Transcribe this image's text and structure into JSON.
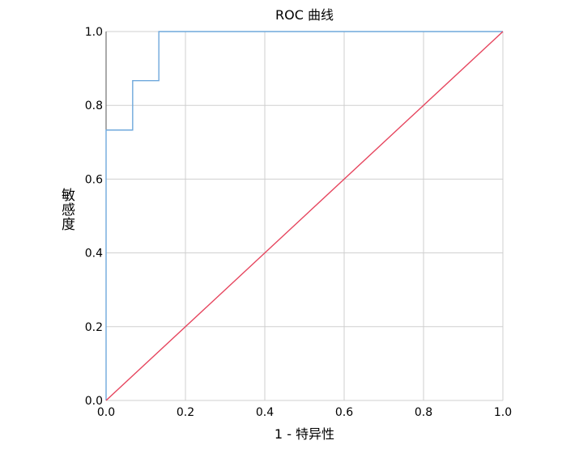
{
  "chart_data": {
    "type": "line",
    "title": "ROC 曲线",
    "xlabel": "1 -  特异性",
    "ylabel": "敏感度",
    "series": [
      {
        "color": "#6fa8dc",
        "x": [
          0,
          0,
          0.067,
          0.067,
          0.133,
          0.133,
          1
        ],
        "values": [
          0,
          0.733,
          0.733,
          0.867,
          0.867,
          1,
          1
        ]
      },
      {
        "color": "#e6455e",
        "x": [
          0,
          1
        ],
        "values": [
          0,
          1
        ]
      }
    ],
    "xlim": [
      0,
      1
    ],
    "ylim": [
      0,
      1
    ],
    "xticks": [
      {
        "value": 0,
        "label": "0.0"
      },
      {
        "value": 0.2,
        "label": "0.2"
      },
      {
        "value": 0.4,
        "label": "0.4"
      },
      {
        "value": 0.6,
        "label": "0.6"
      },
      {
        "value": 0.8,
        "label": "0.8"
      },
      {
        "value": 1,
        "label": "1.0"
      }
    ],
    "yticks": [
      {
        "value": 0,
        "label": "0.0"
      },
      {
        "value": 0.2,
        "label": "0.2"
      },
      {
        "value": 0.4,
        "label": "0.4"
      },
      {
        "value": 0.6,
        "label": "0.6"
      },
      {
        "value": 0.8,
        "label": "0.8"
      },
      {
        "value": 1,
        "label": "1.0"
      }
    ],
    "grid": true
  }
}
